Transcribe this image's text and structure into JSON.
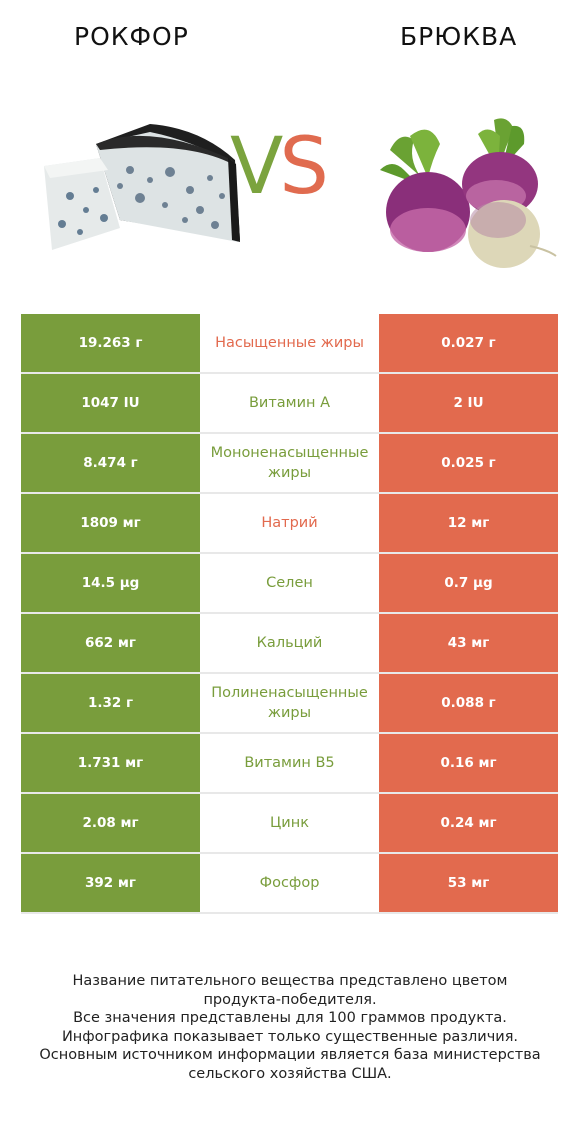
{
  "header": {
    "left_title": "Рокфор",
    "right_title": "Брюква",
    "vs_v": "V",
    "vs_s": "S"
  },
  "colors": {
    "left_winner": "#799d3c",
    "right_winner": "#e26a4e"
  },
  "rows": [
    {
      "left": "19.263 г",
      "nutrient": "Насыщенные жиры",
      "right": "0.027 г",
      "winner": "right"
    },
    {
      "left": "1047 IU",
      "nutrient": "Витамин A",
      "right": "2 IU",
      "winner": "left"
    },
    {
      "left": "8.474 г",
      "nutrient": "Мононенасыщенные жиры",
      "right": "0.025 г",
      "winner": "left"
    },
    {
      "left": "1809 мг",
      "nutrient": "Натрий",
      "right": "12 мг",
      "winner": "right"
    },
    {
      "left": "14.5 µg",
      "nutrient": "Селен",
      "right": "0.7 µg",
      "winner": "left"
    },
    {
      "left": "662 мг",
      "nutrient": "Кальций",
      "right": "43 мг",
      "winner": "left"
    },
    {
      "left": "1.32 г",
      "nutrient": "Полиненасыщенные жиры",
      "right": "0.088 г",
      "winner": "left"
    },
    {
      "left": "1.731 мг",
      "nutrient": "Витамин B5",
      "right": "0.16 мг",
      "winner": "left"
    },
    {
      "left": "2.08 мг",
      "nutrient": "Цинк",
      "right": "0.24 мг",
      "winner": "left"
    },
    {
      "left": "392 мг",
      "nutrient": "Фосфор",
      "right": "53 мг",
      "winner": "left"
    }
  ],
  "footer": {
    "line1": "Название питательного вещества представлено цветом",
    "line2": "продукта-победителя.",
    "line3": "Все значения представлены для 100 граммов продукта.",
    "line4": "Инфографика показывает только существенные различия.",
    "line5": "Основным источником информации является база министерства",
    "line6": "сельского хозяйства США."
  }
}
